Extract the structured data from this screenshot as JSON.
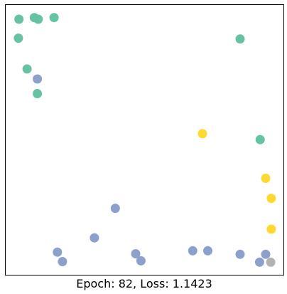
{
  "chart_data": {
    "type": "scatter",
    "title": "",
    "xlabel": "Epoch: 82, Loss: 1.1423",
    "ylabel": "",
    "xlim": [
      0,
      1
    ],
    "ylim": [
      0,
      1
    ],
    "grid": false,
    "ticks": false,
    "legend": "none",
    "colors": {
      "green": "#66c2a5",
      "blue": "#8da0cb",
      "yellow": "#ffd92f",
      "gray": "#b3b3b3"
    },
    "points": [
      {
        "x": 0.049,
        "y": 0.946,
        "color": "green"
      },
      {
        "x": 0.104,
        "y": 0.952,
        "color": "green"
      },
      {
        "x": 0.118,
        "y": 0.946,
        "color": "green"
      },
      {
        "x": 0.175,
        "y": 0.952,
        "color": "green"
      },
      {
        "x": 0.047,
        "y": 0.876,
        "color": "green"
      },
      {
        "x": 0.078,
        "y": 0.762,
        "color": "green"
      },
      {
        "x": 0.115,
        "y": 0.725,
        "color": "blue"
      },
      {
        "x": 0.115,
        "y": 0.671,
        "color": "green"
      },
      {
        "x": 0.843,
        "y": 0.873,
        "color": "green"
      },
      {
        "x": 0.708,
        "y": 0.523,
        "color": "yellow"
      },
      {
        "x": 0.915,
        "y": 0.501,
        "color": "green"
      },
      {
        "x": 0.935,
        "y": 0.358,
        "color": "yellow"
      },
      {
        "x": 0.955,
        "y": 0.284,
        "color": "yellow"
      },
      {
        "x": 0.955,
        "y": 0.17,
        "color": "yellow"
      },
      {
        "x": 0.395,
        "y": 0.247,
        "color": "blue"
      },
      {
        "x": 0.32,
        "y": 0.138,
        "color": "blue"
      },
      {
        "x": 0.187,
        "y": 0.085,
        "color": "blue"
      },
      {
        "x": 0.205,
        "y": 0.05,
        "color": "blue"
      },
      {
        "x": 0.468,
        "y": 0.079,
        "color": "blue"
      },
      {
        "x": 0.487,
        "y": 0.053,
        "color": "blue"
      },
      {
        "x": 0.673,
        "y": 0.09,
        "color": "blue"
      },
      {
        "x": 0.727,
        "y": 0.09,
        "color": "blue"
      },
      {
        "x": 0.843,
        "y": 0.077,
        "color": "blue"
      },
      {
        "x": 0.935,
        "y": 0.077,
        "color": "blue"
      },
      {
        "x": 0.913,
        "y": 0.048,
        "color": "blue"
      },
      {
        "x": 0.953,
        "y": 0.048,
        "color": "gray"
      }
    ]
  }
}
